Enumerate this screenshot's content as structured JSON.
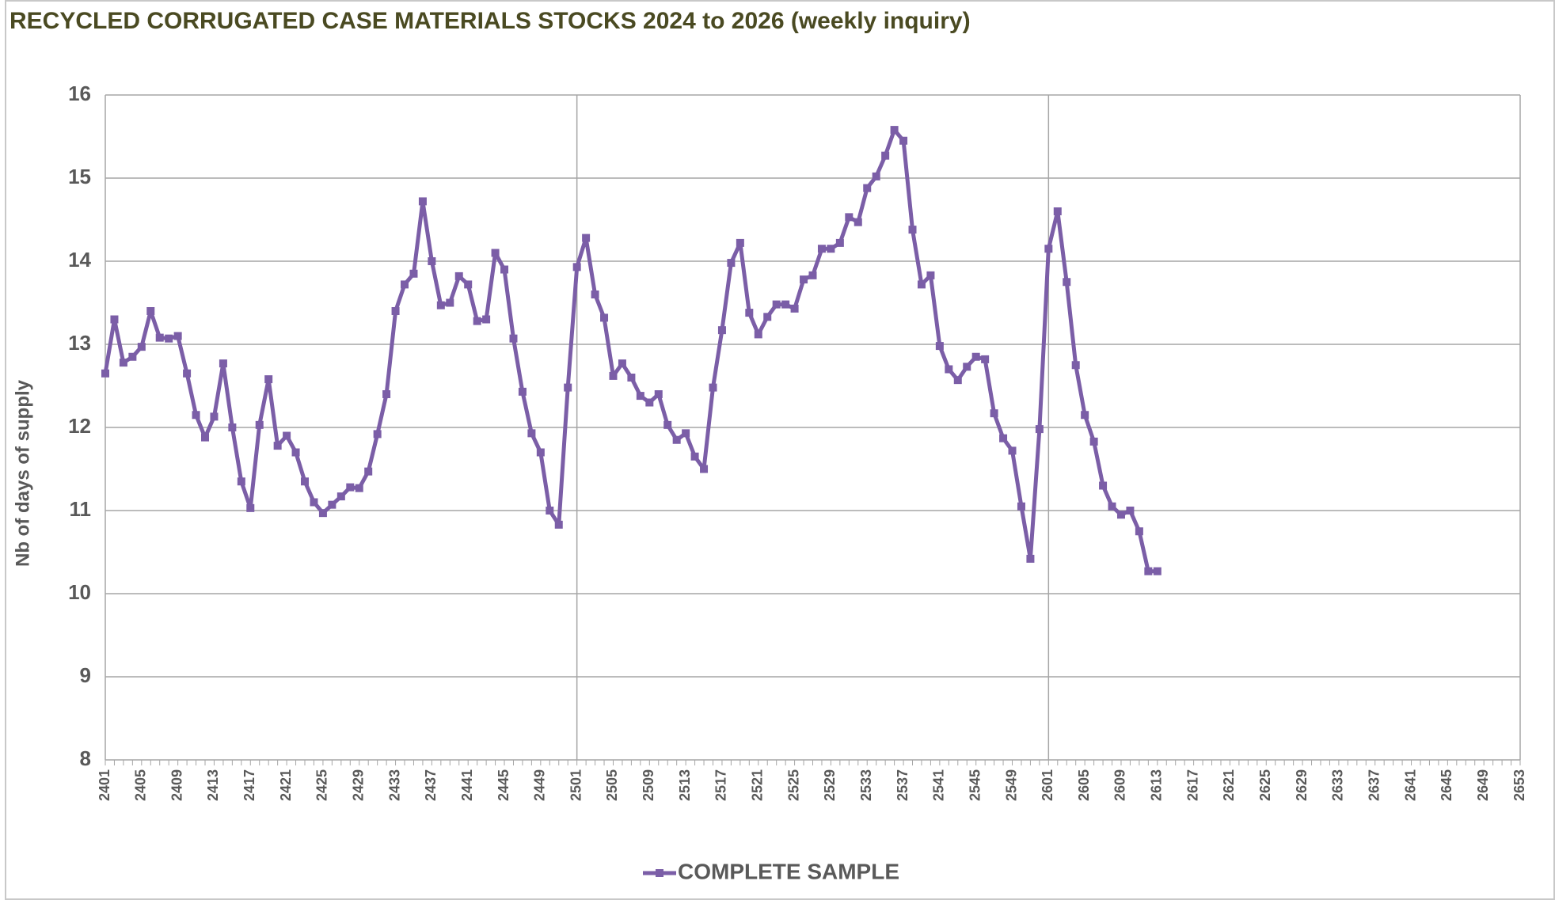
{
  "chart_data": {
    "type": "line",
    "title": "RECYCLED CORRUGATED CASE MATERIALS STOCKS 2024 to 2026 (weekly inquiry)",
    "y_label": "Nb of days of supply",
    "categories": [
      "2401",
      null,
      null,
      null,
      "2405",
      null,
      null,
      null,
      "2409",
      null,
      null,
      null,
      "2413",
      null,
      null,
      null,
      "2417",
      null,
      null,
      null,
      "2421",
      null,
      null,
      null,
      "2425",
      null,
      null,
      null,
      "2429",
      null,
      null,
      null,
      "2433",
      null,
      null,
      null,
      "2437",
      null,
      null,
      null,
      "2441",
      null,
      null,
      null,
      "2445",
      null,
      null,
      null,
      "2449",
      null,
      null,
      null,
      "2501",
      null,
      null,
      null,
      "2505",
      null,
      null,
      null,
      "2509",
      null,
      null,
      null,
      "2513",
      null,
      null,
      null,
      "2517",
      null,
      null,
      null,
      "2521",
      null,
      null,
      null,
      "2525",
      null,
      null,
      null,
      "2529",
      null,
      null,
      null,
      "2533",
      null,
      null,
      null,
      "2537",
      null,
      null,
      null,
      "2541",
      null,
      null,
      null,
      "2545",
      null,
      null,
      null,
      "2549",
      null,
      null,
      null,
      "2601",
      null,
      null,
      null,
      "2605",
      null,
      null,
      null,
      "2609",
      null,
      null,
      null,
      "2613",
      null,
      null,
      null,
      "2617",
      null,
      null,
      null,
      "2621",
      null,
      null,
      null,
      "2625",
      null,
      null,
      null,
      "2629",
      null,
      null,
      null,
      "2633",
      null,
      null,
      null,
      "2637",
      null,
      null,
      null,
      "2641",
      null,
      null,
      null,
      "2645",
      null,
      null,
      null,
      "2649",
      null,
      null,
      null,
      "2653"
    ],
    "series": [
      {
        "name": "COMPLETE SAMPLE",
        "color": "#7b5ea7",
        "values": [
          12.65,
          13.3,
          12.78,
          12.85,
          12.97,
          13.4,
          13.08,
          13.07,
          13.1,
          12.65,
          12.15,
          11.88,
          12.13,
          12.77,
          12.0,
          11.35,
          11.03,
          12.03,
          12.58,
          11.78,
          11.9,
          11.7,
          11.35,
          11.1,
          10.97,
          11.07,
          11.17,
          11.28,
          11.27,
          11.47,
          11.92,
          12.4,
          13.4,
          13.72,
          13.85,
          14.72,
          14.0,
          13.47,
          13.5,
          13.82,
          13.72,
          13.28,
          13.3,
          14.1,
          13.9,
          13.07,
          12.43,
          11.93,
          11.7,
          11.0,
          10.83,
          12.48,
          13.93,
          14.28,
          13.6,
          13.32,
          12.62,
          12.77,
          12.6,
          12.38,
          12.3,
          12.4,
          12.03,
          11.85,
          11.93,
          11.65,
          11.5,
          12.48,
          13.17,
          13.98,
          14.22,
          13.38,
          13.12,
          13.33,
          13.48,
          13.48,
          13.43,
          13.78,
          13.83,
          14.15,
          14.15,
          14.22,
          14.53,
          14.47,
          14.88,
          15.02,
          15.27,
          15.58,
          15.45,
          14.38,
          13.72,
          13.83,
          12.98,
          12.7,
          12.57,
          12.73,
          12.85,
          12.82,
          12.17,
          11.87,
          11.72,
          11.05,
          10.42,
          11.98,
          14.15,
          14.6,
          13.75,
          12.75,
          12.15,
          11.83,
          11.3,
          11.05,
          10.95,
          11.0,
          10.75,
          10.27,
          10.27,
          null,
          null,
          null,
          null,
          null,
          null,
          null,
          null,
          null,
          null,
          null,
          null,
          null,
          null,
          null,
          null,
          null,
          null,
          null,
          null,
          null,
          null,
          null,
          null,
          null,
          null,
          null,
          null,
          null,
          null,
          null,
          null,
          null,
          null,
          null,
          null,
          null,
          null,
          null,
          null
        ]
      }
    ],
    "ylim": [
      8,
      16
    ],
    "yticks": [
      8,
      9,
      10,
      11,
      12,
      13,
      14,
      15,
      16
    ],
    "grid": true,
    "legend": "bottom"
  }
}
